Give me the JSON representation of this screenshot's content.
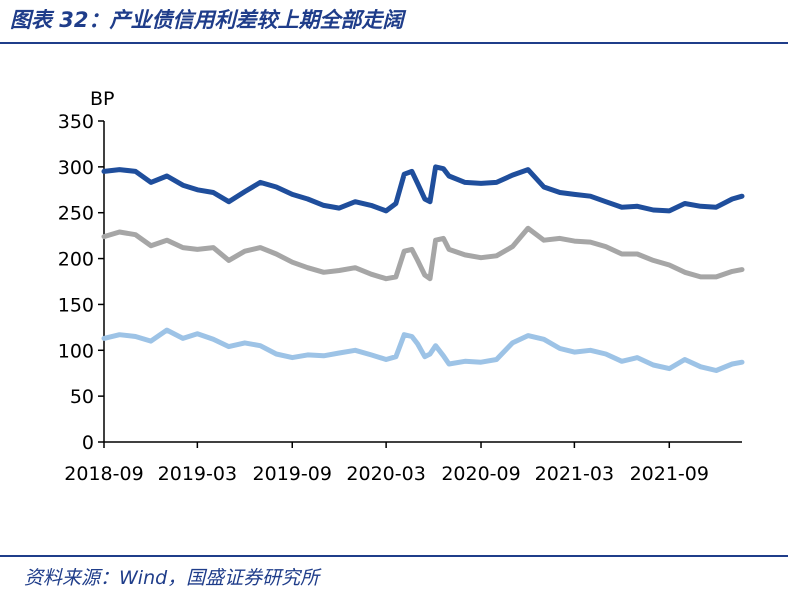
{
  "figure": {
    "title": "图表 32：产业债信用利差较上期全部走阔",
    "source": "资料来源：Wind，国盛证券研究所"
  },
  "chart_data": {
    "type": "line",
    "ylabel": "BP",
    "ylim": [
      0,
      350
    ],
    "y_ticks": [
      0,
      50,
      100,
      150,
      200,
      250,
      300,
      350
    ],
    "x_tick_labels": [
      "2018-09",
      "2019-03",
      "2019-09",
      "2020-03",
      "2020-09",
      "2021-03",
      "2021-09"
    ],
    "x_range": [
      "2018-09-01",
      "2022-01-20"
    ],
    "grid": false,
    "colors": [
      "#1f4e9c",
      "#a6a6a6",
      "#9dc3e6"
    ],
    "series": [
      {
        "x": [
          "2018-09-01",
          "2018-10-01",
          "2018-11-01",
          "2018-12-01",
          "2019-01-01",
          "2019-02-01",
          "2019-03-01",
          "2019-04-01",
          "2019-05-01",
          "2019-06-01",
          "2019-07-01",
          "2019-08-01",
          "2019-09-01",
          "2019-10-01",
          "2019-11-01",
          "2019-12-01",
          "2020-01-01",
          "2020-02-01",
          "2020-03-01",
          "2020-03-20",
          "2020-04-05",
          "2020-04-20",
          "2020-05-01",
          "2020-05-15",
          "2020-05-25",
          "2020-06-05",
          "2020-06-20",
          "2020-07-01",
          "2020-08-01",
          "2020-09-01",
          "2020-10-01",
          "2020-11-01",
          "2020-12-01",
          "2021-01-01",
          "2021-02-01",
          "2021-03-01",
          "2021-04-01",
          "2021-05-01",
          "2021-06-01",
          "2021-07-01",
          "2021-08-01",
          "2021-09-01",
          "2021-10-01",
          "2021-11-01",
          "2021-12-01",
          "2022-01-01",
          "2022-01-20"
        ],
        "values": [
          295,
          297,
          295,
          283,
          290,
          280,
          275,
          272,
          262,
          273,
          283,
          278,
          270,
          265,
          258,
          255,
          262,
          258,
          252,
          260,
          292,
          295,
          282,
          265,
          262,
          300,
          298,
          290,
          283,
          282,
          283,
          291,
          297,
          278,
          272,
          270,
          268,
          262,
          256,
          257,
          253,
          252,
          260,
          257,
          256,
          265,
          268
        ]
      },
      {
        "x": [
          "2018-09-01",
          "2018-10-01",
          "2018-11-01",
          "2018-12-01",
          "2019-01-01",
          "2019-02-01",
          "2019-03-01",
          "2019-04-01",
          "2019-05-01",
          "2019-06-01",
          "2019-07-01",
          "2019-08-01",
          "2019-09-01",
          "2019-10-01",
          "2019-11-01",
          "2019-12-01",
          "2020-01-01",
          "2020-02-01",
          "2020-03-01",
          "2020-03-20",
          "2020-04-05",
          "2020-04-20",
          "2020-05-01",
          "2020-05-15",
          "2020-05-25",
          "2020-06-05",
          "2020-06-20",
          "2020-07-01",
          "2020-08-01",
          "2020-09-01",
          "2020-10-01",
          "2020-11-01",
          "2020-12-01",
          "2021-01-01",
          "2021-02-01",
          "2021-03-01",
          "2021-04-01",
          "2021-05-01",
          "2021-06-01",
          "2021-07-01",
          "2021-08-01",
          "2021-09-01",
          "2021-10-01",
          "2021-11-01",
          "2021-12-01",
          "2022-01-01",
          "2022-01-20"
        ],
        "values": [
          224,
          229,
          226,
          214,
          220,
          212,
          210,
          212,
          198,
          208,
          212,
          205,
          196,
          190,
          185,
          187,
          190,
          183,
          178,
          180,
          208,
          210,
          198,
          182,
          178,
          220,
          222,
          210,
          204,
          201,
          203,
          213,
          233,
          220,
          222,
          219,
          218,
          213,
          205,
          205,
          198,
          193,
          185,
          180,
          180,
          186,
          188
        ]
      },
      {
        "x": [
          "2018-09-01",
          "2018-10-01",
          "2018-11-01",
          "2018-12-01",
          "2019-01-01",
          "2019-02-01",
          "2019-03-01",
          "2019-04-01",
          "2019-05-01",
          "2019-06-01",
          "2019-07-01",
          "2019-08-01",
          "2019-09-01",
          "2019-10-01",
          "2019-11-01",
          "2019-12-01",
          "2020-01-01",
          "2020-02-01",
          "2020-03-01",
          "2020-03-20",
          "2020-04-05",
          "2020-04-20",
          "2020-05-01",
          "2020-05-15",
          "2020-05-25",
          "2020-06-05",
          "2020-06-20",
          "2020-07-01",
          "2020-08-01",
          "2020-09-01",
          "2020-10-01",
          "2020-11-01",
          "2020-12-01",
          "2021-01-01",
          "2021-02-01",
          "2021-03-01",
          "2021-04-01",
          "2021-05-01",
          "2021-06-01",
          "2021-07-01",
          "2021-08-01",
          "2021-09-01",
          "2021-10-01",
          "2021-11-01",
          "2021-12-01",
          "2022-01-01",
          "2022-01-20"
        ],
        "values": [
          113,
          117,
          115,
          110,
          122,
          113,
          118,
          112,
          104,
          108,
          105,
          96,
          92,
          95,
          94,
          97,
          100,
          95,
          90,
          93,
          117,
          115,
          107,
          93,
          96,
          105,
          94,
          85,
          88,
          87,
          90,
          108,
          116,
          112,
          102,
          98,
          100,
          96,
          88,
          92,
          84,
          80,
          90,
          82,
          78,
          85,
          87
        ]
      }
    ]
  }
}
